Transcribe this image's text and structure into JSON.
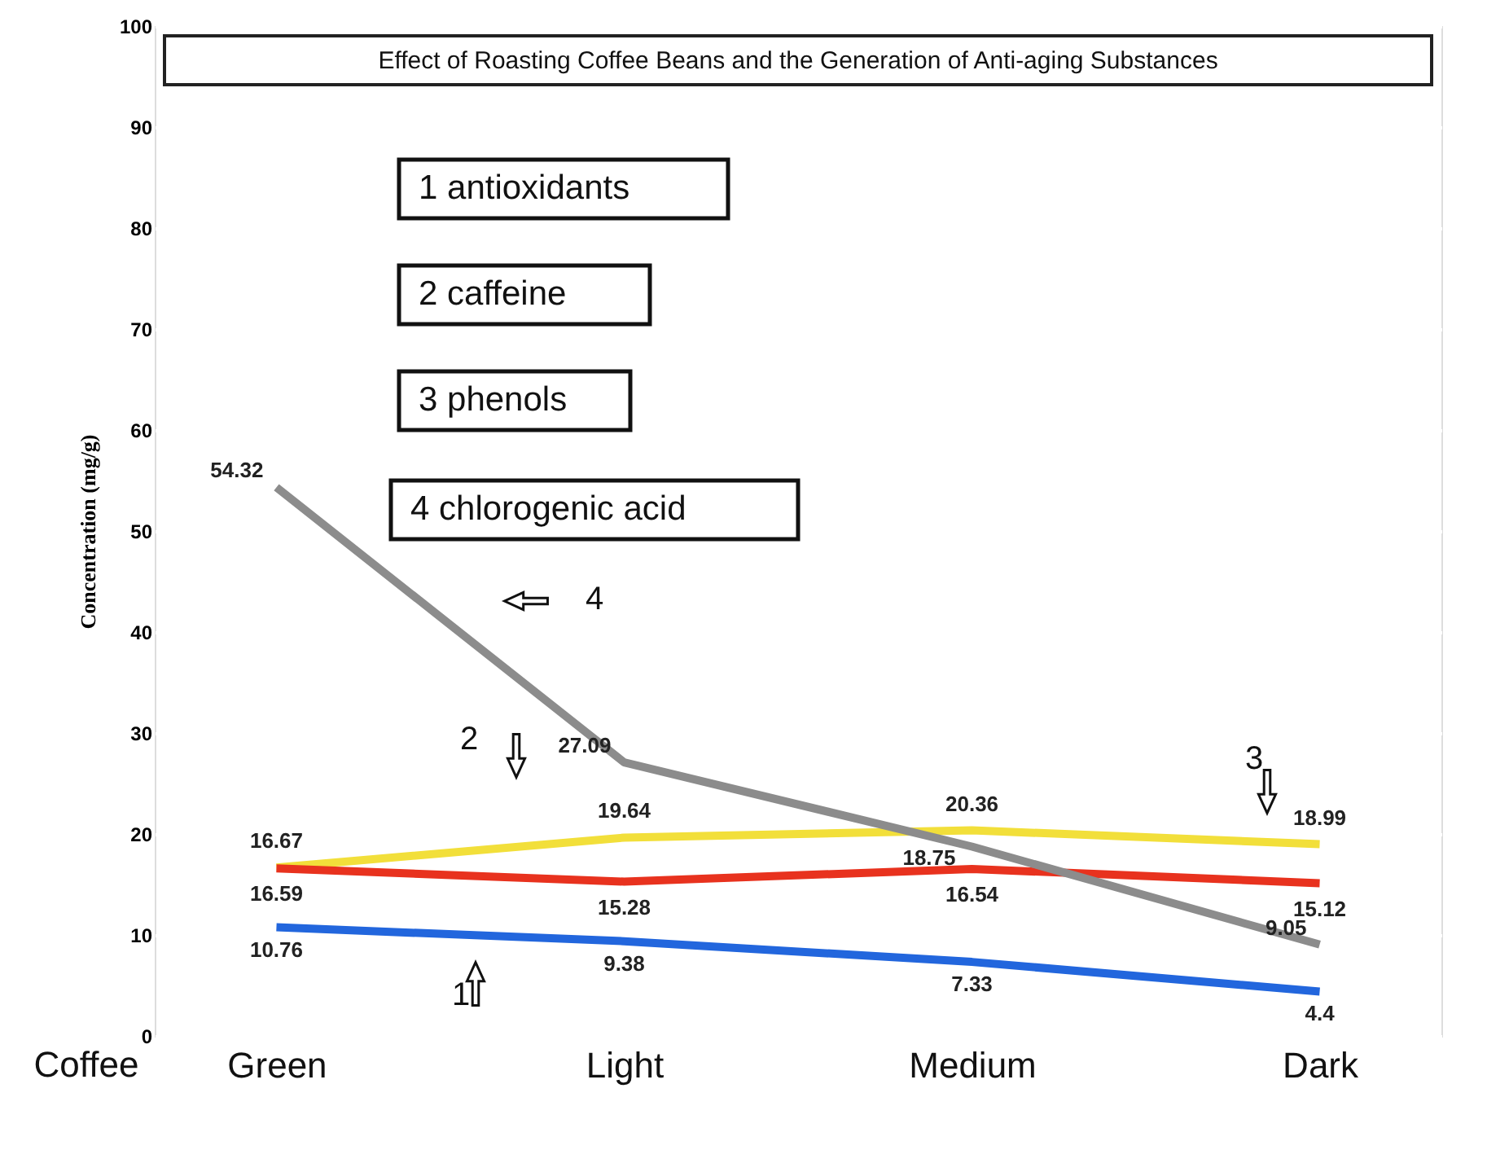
{
  "chart_data": {
    "type": "line",
    "title": "Effect of Roasting Coffee Beans and the Generation of Anti-aging Substances",
    "xlabel": "Coffee",
    "ylabel": "Concentration (mg/g)",
    "categories": [
      "Green",
      "Light",
      "Medium",
      "Dark"
    ],
    "series": [
      {
        "color": "#2266dd",
        "values": [
          10.76,
          9.38,
          7.33,
          4.4
        ]
      },
      {
        "color": "#f2df3a",
        "values": [
          16.67,
          19.64,
          20.36,
          18.99
        ]
      },
      {
        "color": "#e8321e",
        "values": [
          16.59,
          15.28,
          16.54,
          15.12
        ]
      },
      {
        "color": "#8c8c8c",
        "values": [
          54.32,
          27.09,
          18.75,
          9.05
        ]
      }
    ],
    "ylim": [
      0,
      100
    ],
    "yticks": [
      0,
      10,
      20,
      30,
      40,
      50,
      60,
      70,
      80,
      90,
      100
    ],
    "grid": "y",
    "marker": "none",
    "line_style": "solid",
    "data_labels": true,
    "annotations": [
      "1  antioxidants",
      "2  caffeine",
      "3  phenols",
      "4  chlorogenic acid",
      "1",
      "2",
      "3",
      "4"
    ]
  }
}
